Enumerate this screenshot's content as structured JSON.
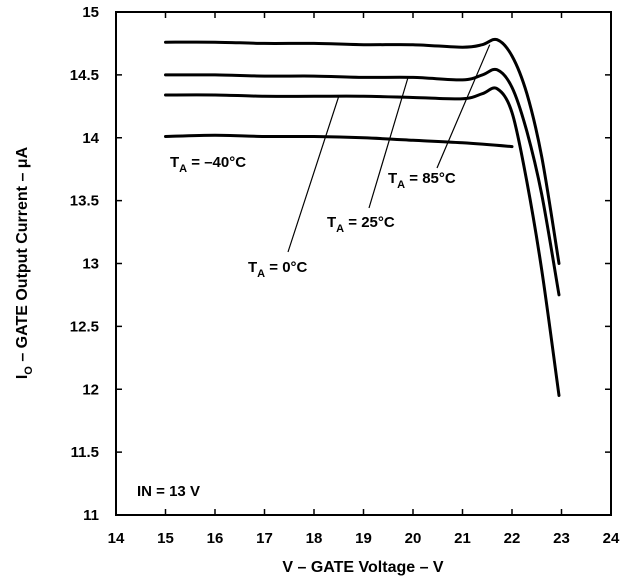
{
  "chart_data": {
    "type": "line",
    "xlabel": "V – GATE Voltage – V",
    "ylabel": {
      "main": "I",
      "sub": "O",
      "rest": " – GATE Output Current – μA"
    },
    "xlim": [
      14,
      24
    ],
    "ylim": [
      11,
      15
    ],
    "xticks": [
      14,
      15,
      16,
      17,
      18,
      19,
      20,
      21,
      22,
      23,
      24
    ],
    "yticks": [
      11,
      11.5,
      12,
      12.5,
      13,
      13.5,
      14,
      14.5,
      15
    ],
    "grid": false,
    "series": [
      {
        "label_main": "T",
        "label_sub": "A",
        "label_rest": " = 85°C",
        "points": [
          [
            15,
            14.76
          ],
          [
            16,
            14.76
          ],
          [
            17,
            14.75
          ],
          [
            18,
            14.75
          ],
          [
            19,
            14.74
          ],
          [
            20,
            14.74
          ],
          [
            21,
            14.72
          ],
          [
            21.4,
            14.74
          ],
          [
            21.7,
            14.78
          ],
          [
            22.0,
            14.65
          ],
          [
            22.3,
            14.35
          ],
          [
            22.6,
            13.85
          ],
          [
            22.95,
            13.0
          ]
        ]
      },
      {
        "label_main": "T",
        "label_sub": "A",
        "label_rest": " = 25°C",
        "points": [
          [
            15,
            14.5
          ],
          [
            16,
            14.5
          ],
          [
            17,
            14.49
          ],
          [
            18,
            14.49
          ],
          [
            19,
            14.48
          ],
          [
            20,
            14.48
          ],
          [
            21,
            14.46
          ],
          [
            21.4,
            14.5
          ],
          [
            21.7,
            14.54
          ],
          [
            22.0,
            14.4
          ],
          [
            22.3,
            14.05
          ],
          [
            22.6,
            13.55
          ],
          [
            22.95,
            12.75
          ]
        ]
      },
      {
        "label_main": "T",
        "label_sub": "A",
        "label_rest": " = 0°C",
        "points": [
          [
            15,
            14.34
          ],
          [
            16,
            14.34
          ],
          [
            17,
            14.33
          ],
          [
            18,
            14.33
          ],
          [
            19,
            14.33
          ],
          [
            20,
            14.32
          ],
          [
            21,
            14.31
          ],
          [
            21.4,
            14.35
          ],
          [
            21.7,
            14.39
          ],
          [
            22.0,
            14.2
          ],
          [
            22.3,
            13.65
          ],
          [
            22.6,
            12.95
          ],
          [
            22.95,
            11.95
          ]
        ]
      },
      {
        "label_main": "T",
        "label_sub": "A",
        "label_rest": " = –40°C",
        "points": [
          [
            15,
            14.01
          ],
          [
            16,
            14.02
          ],
          [
            17,
            14.01
          ],
          [
            18,
            14.01
          ],
          [
            19,
            14.0
          ],
          [
            20,
            13.98
          ],
          [
            21,
            13.96
          ],
          [
            22,
            13.93
          ]
        ]
      }
    ],
    "annotation": "IN = 13 V"
  }
}
